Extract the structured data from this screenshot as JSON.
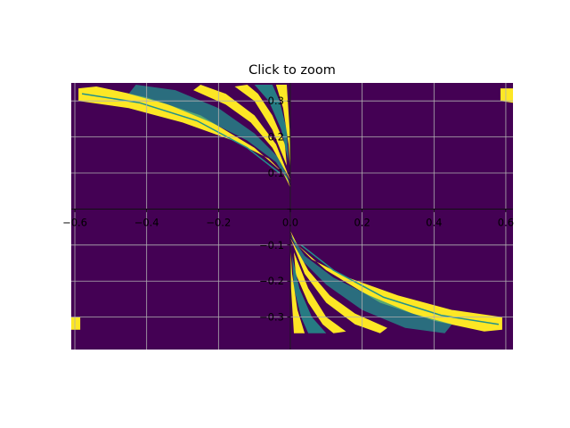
{
  "chart_data": {
    "type": "heatmap",
    "title": "Click to zoom",
    "xlabel": "",
    "ylabel": "",
    "xlim": [
      -0.61,
      0.62
    ],
    "ylim": [
      -0.39,
      0.35
    ],
    "grid": true,
    "axes_through_origin": true,
    "colormap": "viridis",
    "colors": {
      "background": "#440154",
      "filled": "#fde725",
      "mid": "#21918c",
      "grid": "#b0b0b0"
    },
    "x_ticks": [
      -0.6,
      -0.4,
      -0.2,
      0.0,
      0.2,
      0.4,
      0.6
    ],
    "x_tick_labels": [
      "−0.6",
      "−0.4",
      "−0.2",
      "0.0",
      "0.2",
      "0.4",
      "0.6"
    ],
    "y_ticks": [
      0.3,
      0.2,
      0.1,
      0.0,
      -0.1,
      -0.2,
      -0.3
    ],
    "y_tick_labels": [
      "0.3",
      "0.2",
      "0.1",
      "0.0",
      "−0.1",
      "−0.2",
      "−0.3"
    ]
  }
}
